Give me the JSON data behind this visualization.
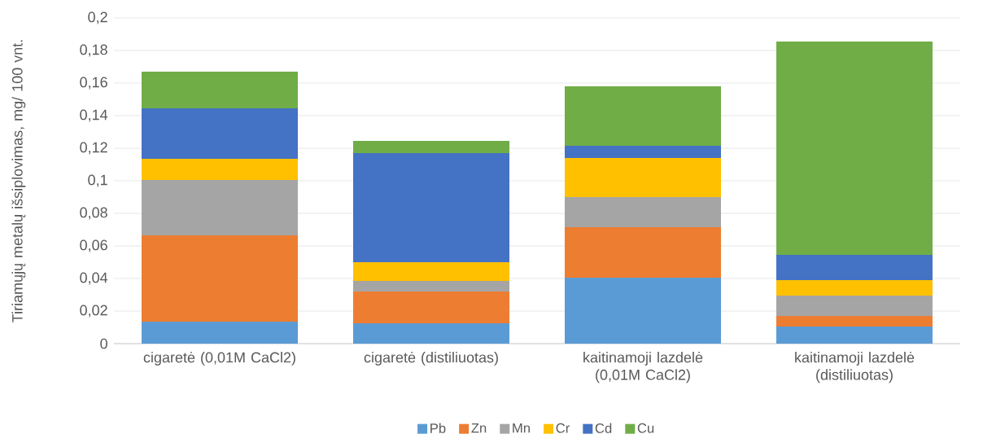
{
  "chart_data": {
    "type": "bar",
    "stacked": true,
    "ylabel": "Tiriamųjų metalų išsiplovimas, mg/ 100 vnt.",
    "categories": [
      "cigaretė (0,01M CaCl2)",
      "cigaretė (distiliuotas)",
      "kaitinamoji lazdelė (0,01M CaCl2)",
      "kaitinamoji lazdelė (distiliuotas)"
    ],
    "series": [
      {
        "name": "Pb",
        "color": "#5b9bd5",
        "values": [
          0.0135,
          0.0125,
          0.0405,
          0.0105
        ]
      },
      {
        "name": "Zn",
        "color": "#ed7d31",
        "values": [
          0.053,
          0.0195,
          0.031,
          0.0065
        ]
      },
      {
        "name": "Mn",
        "color": "#a5a5a5",
        "values": [
          0.034,
          0.0065,
          0.0185,
          0.0125
        ]
      },
      {
        "name": "Cr",
        "color": "#ffc000",
        "values": [
          0.013,
          0.0115,
          0.024,
          0.0095
        ]
      },
      {
        "name": "Cd",
        "color": "#4472c4",
        "values": [
          0.031,
          0.067,
          0.0075,
          0.0155
        ]
      },
      {
        "name": "Cu",
        "color": "#70ad47",
        "values": [
          0.0225,
          0.0075,
          0.0365,
          0.131
        ]
      }
    ],
    "ylim": [
      0,
      0.2
    ],
    "yticks": [
      0,
      {
        "value": 0.02,
        "label": "0,02"
      },
      {
        "value": 0.04,
        "label": "0,04"
      },
      {
        "value": 0.06,
        "label": "0,06"
      },
      {
        "value": 0.08,
        "label": "0,08"
      },
      {
        "value": 0.1,
        "label": "0,1"
      },
      {
        "value": 0.12,
        "label": "0,12"
      },
      {
        "value": 0.14,
        "label": "0,14"
      },
      {
        "value": 0.16,
        "label": "0,16"
      },
      {
        "value": 0.18,
        "label": "0,18"
      },
      {
        "value": 0.2,
        "label": "0,2"
      }
    ],
    "grid": "y",
    "legend": "bottom"
  }
}
